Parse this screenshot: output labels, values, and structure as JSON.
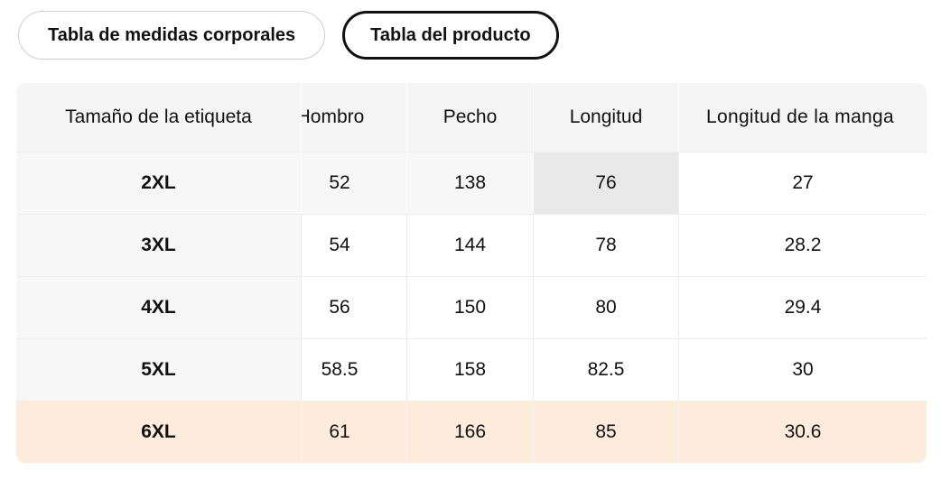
{
  "tabs": [
    {
      "label": "Tabla de medidas corporales",
      "selected": false
    },
    {
      "label": "Tabla del producto",
      "selected": true
    }
  ],
  "table": {
    "columns": [
      "Tamaño de la etiqueta",
      "Hombro",
      "Pecho",
      "Longitud",
      "Longitud de la manga"
    ],
    "rows": [
      {
        "size": "2XL",
        "values": [
          "52",
          "138",
          "76",
          "27"
        ]
      },
      {
        "size": "3XL",
        "values": [
          "54",
          "144",
          "78",
          "28.2"
        ]
      },
      {
        "size": "4XL",
        "values": [
          "56",
          "150",
          "80",
          "29.4"
        ]
      },
      {
        "size": "5XL",
        "values": [
          "58.5",
          "158",
          "82.5",
          "30"
        ]
      },
      {
        "size": "6XL",
        "values": [
          "61",
          "166",
          "85",
          "30.6"
        ]
      }
    ],
    "selected_cell": {
      "row": "2XL",
      "column": "Longitud",
      "value": "76"
    },
    "highlighted_row": "6XL"
  },
  "colors": {
    "header_bg": "#f5f5f6",
    "row_gray_bg": "#f7f7f8",
    "selected_cell_bg": "#e9e9ea",
    "highlight_row_bg": "#fdecdc",
    "active_tab_border": "#111111",
    "inactive_tab_border": "#cfcfcf"
  }
}
